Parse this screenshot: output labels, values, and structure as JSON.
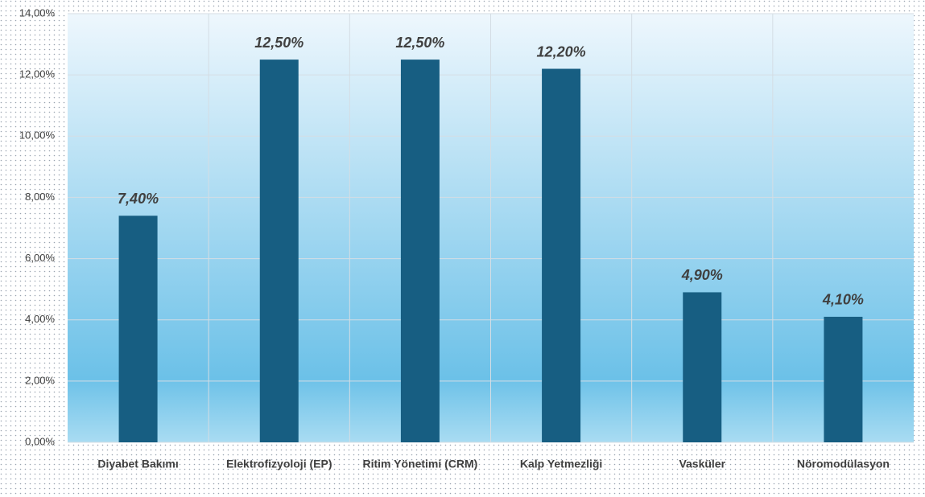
{
  "chart_data": {
    "type": "bar",
    "categories": [
      "Diyabet Bakımı",
      "Elektrofizyoloji (EP)",
      "Ritim Yönetimi (CRM)",
      "Kalp Yetmezliği",
      "Vasküler",
      "Nöromodülasyon"
    ],
    "values": [
      7.4,
      12.5,
      12.5,
      12.2,
      4.9,
      4.1
    ],
    "value_labels": [
      "7,40%",
      "12,50%",
      "12,50%",
      "12,20%",
      "4,90%",
      "4,10%"
    ],
    "color": "#175e82",
    "ylim": [
      0,
      14
    ],
    "yticks": [
      {
        "value": 0,
        "label": "0,00%"
      },
      {
        "value": 2,
        "label": "2,00%"
      },
      {
        "value": 4,
        "label": "4,00%"
      },
      {
        "value": 6,
        "label": "6,00%"
      },
      {
        "value": 8,
        "label": "8,00%"
      },
      {
        "value": 10,
        "label": "10,00%"
      },
      {
        "value": 12,
        "label": "12,00%"
      },
      {
        "value": 14,
        "label": "14,00%"
      }
    ],
    "grid": true
  }
}
